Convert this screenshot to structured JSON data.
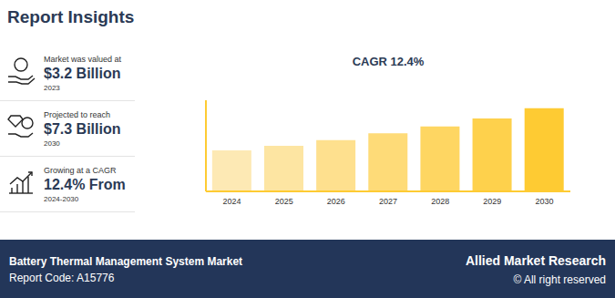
{
  "header": {
    "title": "Report Insights"
  },
  "insights": [
    {
      "caption": "Market was valued at",
      "value": "$3.2 Billion",
      "note": "2023"
    },
    {
      "caption": "Projected to reach",
      "value": "$7.3 Billion",
      "note": "2030"
    },
    {
      "caption": "Growing at a CAGR",
      "value": "12.4% From",
      "note": "2024-2030"
    }
  ],
  "chart_data": {
    "type": "bar",
    "title": "CAGR 12.4%",
    "categories": [
      "2024",
      "2025",
      "2026",
      "2027",
      "2028",
      "2029",
      "2030"
    ],
    "values": [
      3.6,
      4.0,
      4.5,
      5.1,
      5.7,
      6.4,
      7.3
    ],
    "colors": [
      "#fde9b4",
      "#fde5a2",
      "#fee08e",
      "#fedb78",
      "#fed662",
      "#fed14c",
      "#fecb33"
    ],
    "ylim": [
      0,
      8
    ],
    "tick_labels": "x"
  },
  "footer": {
    "left": [
      "Battery Thermal Management System Market",
      "Report Code: A15776"
    ],
    "right": [
      "Allied Market Research",
      "© All right reserved"
    ]
  }
}
